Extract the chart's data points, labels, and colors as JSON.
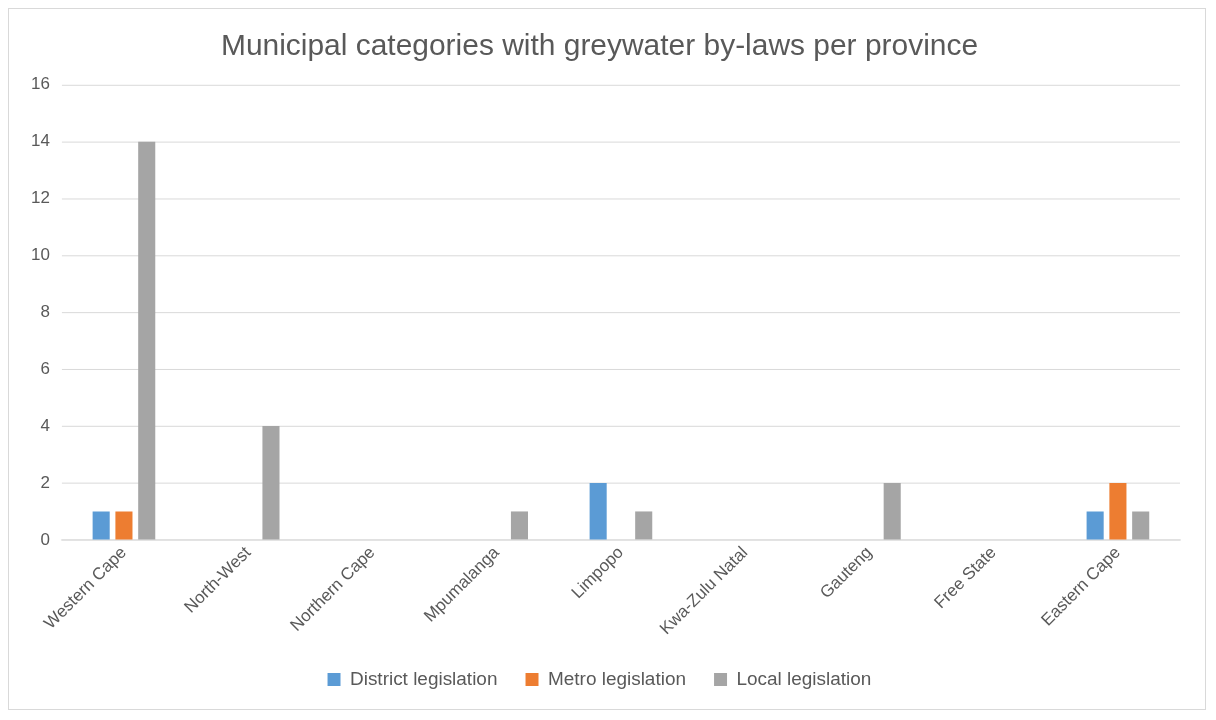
{
  "chart_data": {
    "type": "bar",
    "title": "Municipal categories with greywater by-laws per province",
    "categories": [
      "Western Cape",
      "North-West",
      "Northern Cape",
      "Mpumalanga",
      "Limpopo",
      "Kwa-Zulu Natal",
      "Gauteng",
      "Free State",
      "Eastern Cape"
    ],
    "series": [
      {
        "name": "District legislation",
        "color": "#5b9bd5",
        "values": [
          1,
          0,
          0,
          0,
          2,
          0,
          0,
          0,
          1
        ]
      },
      {
        "name": "Metro legislation",
        "color": "#ed7d31",
        "values": [
          1,
          0,
          0,
          0,
          0,
          0,
          0,
          0,
          2
        ]
      },
      {
        "name": "Local legislation",
        "color": "#a5a5a5",
        "values": [
          14,
          4,
          0,
          1,
          1,
          0,
          2,
          0,
          1
        ]
      }
    ],
    "ylim": [
      0,
      16
    ],
    "yticks": [
      0,
      2,
      4,
      6,
      8,
      10,
      12,
      14,
      16
    ],
    "grid": "y",
    "legend": "bottom"
  }
}
